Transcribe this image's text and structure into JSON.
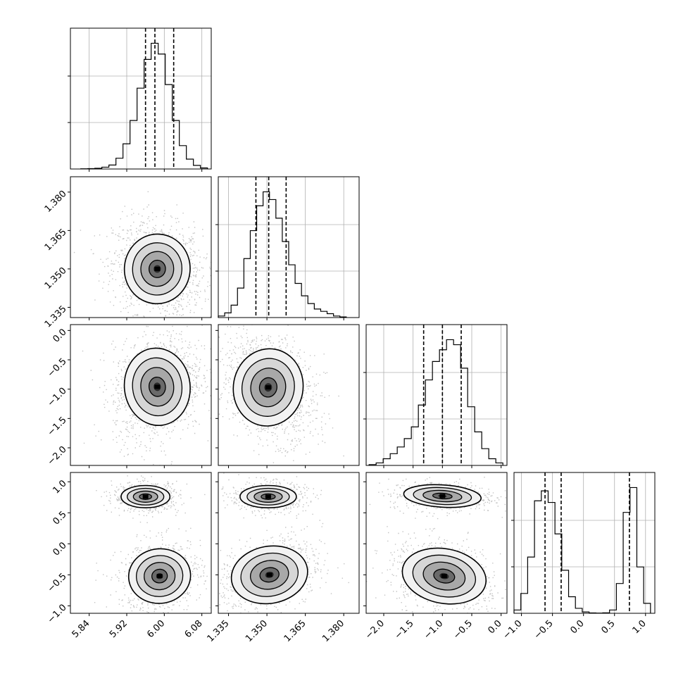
{
  "chart_data": {
    "type": "corner",
    "params": [
      {
        "ticks": [
          "5.84",
          "5.92",
          "6.00",
          "6.08"
        ],
        "tickvals": [
          5.84,
          5.92,
          6.0,
          6.08
        ],
        "range": [
          5.8,
          6.1
        ],
        "quantiles": [
          5.96,
          5.98,
          6.02
        ]
      },
      {
        "ticks": [
          "1.335",
          "1.350",
          "1.365",
          "1.380"
        ],
        "tickvals": [
          1.335,
          1.35,
          1.365,
          1.38
        ],
        "range": [
          1.331,
          1.386
        ],
        "quantiles": [
          1.3457,
          1.3507,
          1.3575
        ]
      },
      {
        "ticks": [
          "−2.0",
          "−1.5",
          "−1.0",
          "−0.5",
          "0.0"
        ],
        "tickvals": [
          -2.0,
          -1.5,
          -1.0,
          -0.5,
          0.0
        ],
        "range": [
          -2.3,
          0.1
        ],
        "quantiles": [
          -1.32,
          -1.0,
          -0.68
        ]
      },
      {
        "ticks": [
          "−1.0",
          "−0.5",
          "0.0",
          "0.5",
          "1.0"
        ],
        "tickvals": [
          -1.0,
          -0.5,
          0.0,
          0.5,
          1.0
        ],
        "range": [
          -1.12,
          1.15
        ],
        "quantiles": [
          -0.62,
          -0.36,
          0.74
        ]
      }
    ],
    "histograms": [
      {
        "param": 0,
        "bins": [
          5.822,
          5.837,
          5.852,
          5.867,
          5.882,
          5.897,
          5.912,
          5.927,
          5.942,
          5.957,
          5.972,
          5.987,
          6.002,
          6.017,
          6.032,
          6.047,
          6.062,
          6.077,
          6.092
        ],
        "counts": [
          1,
          2,
          4,
          10,
          22,
          60,
          140,
          270,
          450,
          610,
          700,
          640,
          470,
          270,
          130,
          55,
          20,
          6,
          2
        ]
      },
      {
        "param": 1,
        "bins": [
          1.331,
          1.3335,
          1.336,
          1.3385,
          1.341,
          1.3435,
          1.346,
          1.3485,
          1.351,
          1.3535,
          1.356,
          1.3585,
          1.361,
          1.3635,
          1.366,
          1.3685,
          1.371,
          1.3735,
          1.376,
          1.3785,
          1.381
        ],
        "counts": [
          10,
          30,
          80,
          190,
          380,
          560,
          720,
          810,
          760,
          640,
          490,
          340,
          220,
          140,
          90,
          55,
          40,
          25,
          10,
          4
        ]
      },
      {
        "param": 2,
        "bins": [
          -2.25,
          -2.13,
          -2.01,
          -1.89,
          -1.77,
          -1.65,
          -1.53,
          -1.41,
          -1.29,
          -1.17,
          -1.05,
          -0.93,
          -0.81,
          -0.69,
          -0.57,
          -0.45,
          -0.33,
          -0.21,
          -0.09,
          0.03
        ],
        "counts": [
          5,
          15,
          40,
          70,
          110,
          160,
          230,
          360,
          510,
          620,
          690,
          750,
          720,
          580,
          350,
          200,
          100,
          40,
          15
        ]
      },
      {
        "param": 3,
        "bins": [
          -1.12,
          -1.01,
          -0.9,
          -0.79,
          -0.68,
          -0.57,
          -0.46,
          -0.35,
          -0.24,
          -0.13,
          -0.02,
          0.09,
          0.2,
          0.31,
          0.42,
          0.53,
          0.64,
          0.75,
          0.86,
          0.97,
          1.08
        ],
        "counts": [
          20,
          120,
          340,
          680,
          740,
          670,
          480,
          260,
          100,
          30,
          8,
          2,
          1,
          3,
          20,
          180,
          610,
          760,
          280,
          60
        ]
      }
    ],
    "joint": [
      {
        "x": 0,
        "y": 1,
        "modes": [
          {
            "mx": 5.985,
            "my": 1.35,
            "sx": 0.035,
            "sy": 0.0068,
            "rho": -0.15,
            "w": 1
          }
        ]
      },
      {
        "x": 0,
        "y": 2,
        "modes": [
          {
            "mx": 5.985,
            "my": -0.96,
            "sx": 0.035,
            "sy": 0.33,
            "rho": 0.2,
            "w": 1
          }
        ]
      },
      {
        "x": 1,
        "y": 2,
        "modes": [
          {
            "mx": 1.3505,
            "my": -0.97,
            "sx": 0.0068,
            "sy": 0.33,
            "rho": -0.3,
            "w": 1
          }
        ]
      },
      {
        "x": 0,
        "y": 3,
        "modes": [
          {
            "mx": 5.96,
            "my": 0.76,
            "sx": 0.026,
            "sy": 0.09,
            "rho": 0.0,
            "w": 0.42
          },
          {
            "mx": 5.99,
            "my": -0.52,
            "sx": 0.033,
            "sy": 0.22,
            "rho": 0.15,
            "w": 0.58
          }
        ]
      },
      {
        "x": 1,
        "y": 3,
        "modes": [
          {
            "mx": 1.3505,
            "my": 0.76,
            "sx": 0.0055,
            "sy": 0.09,
            "rho": 0.0,
            "w": 0.42
          },
          {
            "mx": 1.351,
            "my": -0.5,
            "sx": 0.0075,
            "sy": 0.23,
            "rho": 0.3,
            "w": 0.58
          }
        ]
      },
      {
        "x": 2,
        "y": 3,
        "modes": [
          {
            "mx": -1.0,
            "my": 0.77,
            "sx": 0.33,
            "sy": 0.09,
            "rho": -0.1,
            "w": 0.42
          },
          {
            "mx": -0.97,
            "my": -0.52,
            "sx": 0.36,
            "sy": 0.22,
            "rho": -0.3,
            "w": 0.58
          }
        ]
      }
    ],
    "grid": true
  }
}
